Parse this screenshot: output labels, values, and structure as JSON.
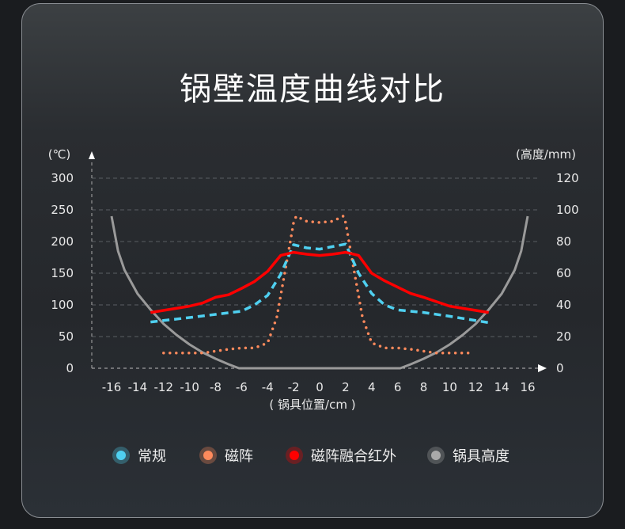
{
  "title": "锅壁温度曲线对比",
  "chart_data": {
    "type": "line",
    "title": "锅壁温度曲线对比",
    "ylabel": "(℃)",
    "y2label": "(高度/mm)",
    "xlabel": "( 锅具位置/cm )",
    "xlim": [
      -16,
      16
    ],
    "ylim": [
      0,
      300
    ],
    "y2lim": [
      0,
      120
    ],
    "xticks": [
      -16,
      -14,
      -12,
      -10,
      -8,
      -6,
      -4,
      -2,
      0,
      2,
      4,
      6,
      8,
      10,
      12,
      14,
      16
    ],
    "yticks": [
      0,
      50,
      100,
      150,
      200,
      250,
      300
    ],
    "y2ticks": [
      0,
      20,
      40,
      60,
      80,
      100,
      120
    ],
    "grid": true,
    "legend_position": "bottom",
    "series": [
      {
        "name": "常规",
        "color": "#4fd0f0",
        "style": "dashed",
        "axis": "left",
        "x": [
          -13,
          -10,
          -8,
          -6,
          -5,
          -4,
          -3,
          -2,
          -1,
          0,
          1,
          2,
          3,
          4,
          5,
          6,
          8,
          10,
          13
        ],
        "y": [
          73,
          80,
          85,
          90,
          100,
          115,
          148,
          195,
          190,
          188,
          192,
          196,
          150,
          118,
          100,
          92,
          88,
          82,
          72
        ]
      },
      {
        "name": "磁阵",
        "color": "#ff8a5c",
        "style": "dotted",
        "axis": "left",
        "x": [
          -12,
          -9,
          -7,
          -6,
          -5,
          -4,
          -3.3,
          -2.6,
          -2,
          -1.8,
          -1,
          0,
          1,
          1.8,
          2,
          2.6,
          3.3,
          4,
          5,
          6,
          7,
          9,
          11.6
        ],
        "y": [
          24,
          24,
          30,
          32,
          32,
          40,
          80,
          160,
          230,
          240,
          232,
          230,
          232,
          240,
          230,
          160,
          80,
          40,
          32,
          32,
          30,
          24,
          24
        ]
      },
      {
        "name": "磁阵融合红外",
        "color": "#ff0000",
        "style": "solid",
        "axis": "left",
        "x": [
          -13,
          -10,
          -9,
          -8,
          -7,
          -6,
          -5,
          -4,
          -3,
          -2,
          -1,
          0,
          1,
          2,
          3,
          4,
          5,
          6,
          7,
          8,
          9,
          10,
          13
        ],
        "y": [
          88,
          98,
          103,
          112,
          116,
          126,
          137,
          153,
          178,
          183,
          180,
          178,
          180,
          183,
          178,
          150,
          138,
          128,
          118,
          112,
          105,
          98,
          88
        ]
      },
      {
        "name": "锅具高度",
        "color": "#9a9a9a",
        "style": "solid",
        "axis": "right",
        "x": [
          -16,
          -15.5,
          -15,
          -14,
          -13,
          -12,
          -11,
          -10,
          -9,
          -8,
          -7,
          -6.2,
          6.2,
          7,
          8,
          9,
          10,
          11,
          12,
          13,
          14,
          15,
          15.5,
          16
        ],
        "y": [
          96,
          74,
          62,
          47,
          37,
          28,
          21,
          15,
          10,
          6,
          2.5,
          0,
          0,
          2.5,
          6,
          10,
          15,
          21,
          28,
          37,
          47,
          62,
          74,
          96
        ]
      }
    ]
  }
}
